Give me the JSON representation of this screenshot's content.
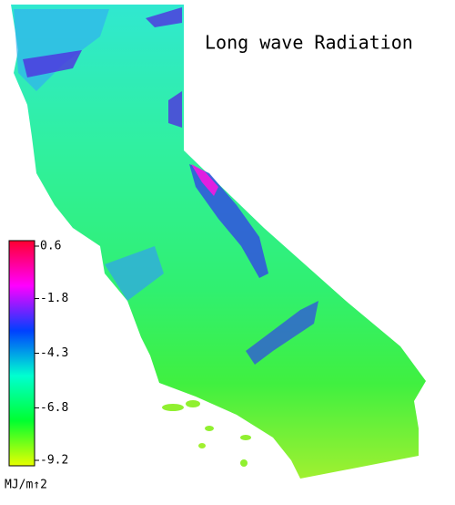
{
  "map": {
    "title": "Long wave Radiation"
  },
  "colorbar": {
    "ticks": [
      0.6,
      -1.8,
      -4.3,
      -6.8,
      -9.2
    ],
    "lim": [
      -9.2,
      0.6
    ],
    "colors": [
      "#e8ff00",
      "#00ff30",
      "#00ffd0",
      "#0040ff",
      "#ff00ff",
      "#ff0030"
    ],
    "unit": "MJ/m↑2"
  }
}
